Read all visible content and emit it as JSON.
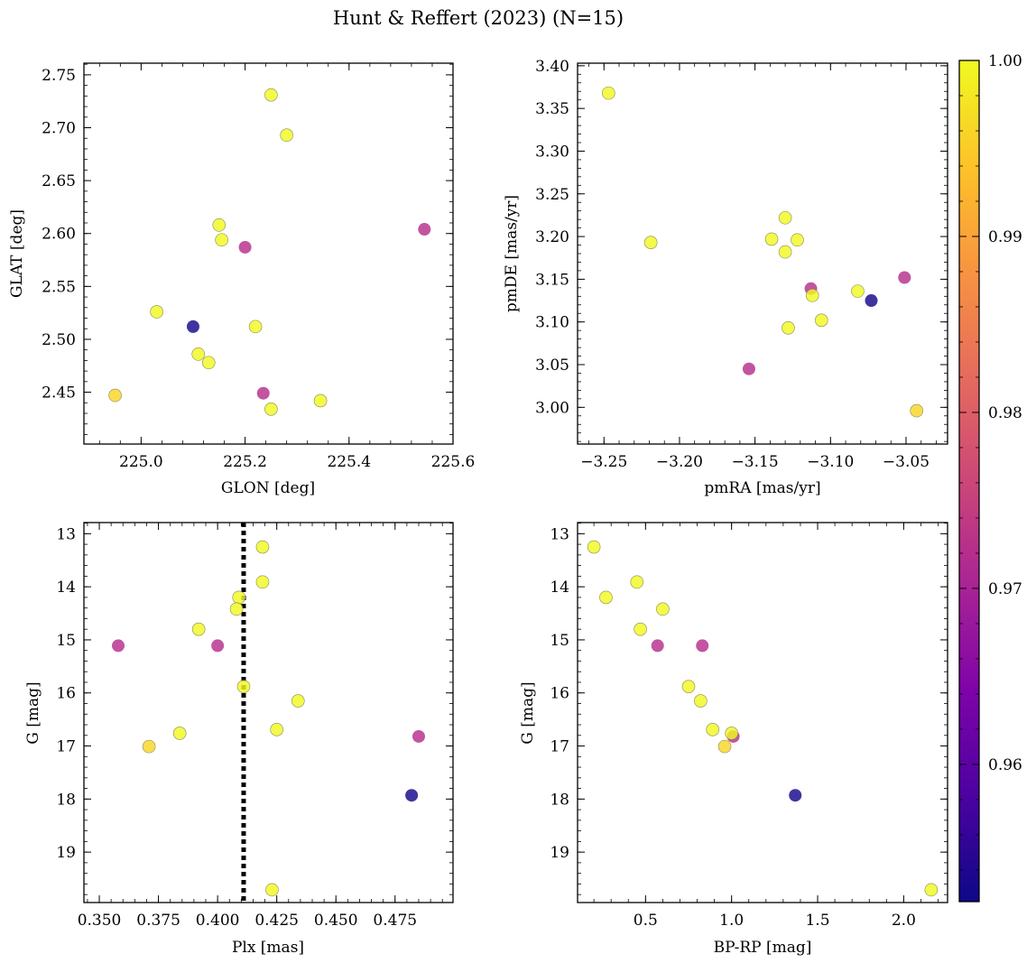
{
  "figure": {
    "title": "Hunt & Reffert (2023) (N=15)"
  },
  "colorbar": {
    "colormap": "plasma",
    "range": [
      0.9522,
      1.0
    ],
    "ticks": [
      0.96,
      0.97,
      0.98,
      0.99,
      1.0
    ],
    "tick_labels": [
      "0.96",
      "0.97",
      "0.98",
      "0.99",
      "1.00"
    ]
  },
  "chart_data": [
    {
      "type": "scatter",
      "xlabel": "GLON [deg]",
      "ylabel": "GLAT [deg]",
      "xlim": [
        224.89,
        225.6
      ],
      "ylim": [
        2.401,
        2.761
      ],
      "xticks": [
        225.0,
        225.2,
        225.4,
        225.6
      ],
      "xtick_labels": [
        "225.0",
        "225.2",
        "225.4",
        "225.6"
      ],
      "yticks": [
        2.45,
        2.5,
        2.55,
        2.6,
        2.65,
        2.7,
        2.75
      ],
      "ytick_labels": [
        "2.45",
        "2.50",
        "2.55",
        "2.60",
        "2.65",
        "2.70",
        "2.75"
      ],
      "points": [
        {
          "x": 225.25,
          "y": 2.731,
          "c": 1.0
        },
        {
          "x": 225.28,
          "y": 2.693,
          "c": 1.0
        },
        {
          "x": 225.15,
          "y": 2.608,
          "c": 1.0
        },
        {
          "x": 225.155,
          "y": 2.594,
          "c": 1.0
        },
        {
          "x": 225.2,
          "y": 2.587,
          "c": 0.972
        },
        {
          "x": 225.545,
          "y": 2.604,
          "c": 0.972
        },
        {
          "x": 225.03,
          "y": 2.526,
          "c": 1.0
        },
        {
          "x": 225.1,
          "y": 2.512,
          "c": 0.953
        },
        {
          "x": 225.22,
          "y": 2.512,
          "c": 1.0
        },
        {
          "x": 225.11,
          "y": 2.486,
          "c": 1.0
        },
        {
          "x": 225.13,
          "y": 2.478,
          "c": 1.0
        },
        {
          "x": 224.95,
          "y": 2.447,
          "c": 0.996
        },
        {
          "x": 225.235,
          "y": 2.449,
          "c": 0.972
        },
        {
          "x": 225.345,
          "y": 2.442,
          "c": 1.0
        },
        {
          "x": 225.25,
          "y": 2.434,
          "c": 1.0
        }
      ]
    },
    {
      "type": "scatter",
      "xlabel": "pmRA [mas/yr]",
      "ylabel": "pmDE [mas/yr]",
      "xlim": [
        -3.2675,
        -3.0225
      ],
      "ylim": [
        2.957,
        3.403
      ],
      "xticks": [
        -3.25,
        -3.2,
        -3.15,
        -3.1,
        -3.05
      ],
      "xtick_labels": [
        "−3.25",
        "−3.20",
        "−3.15",
        "−3.10",
        "−3.05"
      ],
      "yticks": [
        3.0,
        3.05,
        3.1,
        3.15,
        3.2,
        3.25,
        3.3,
        3.35,
        3.4
      ],
      "ytick_labels": [
        "3.00",
        "3.05",
        "3.10",
        "3.15",
        "3.20",
        "3.25",
        "3.30",
        "3.35",
        "3.40"
      ],
      "points": [
        {
          "x": -3.247,
          "y": 3.368,
          "c": 1.0
        },
        {
          "x": -3.219,
          "y": 3.193,
          "c": 1.0
        },
        {
          "x": -3.13,
          "y": 3.222,
          "c": 1.0
        },
        {
          "x": -3.139,
          "y": 3.197,
          "c": 1.0
        },
        {
          "x": -3.122,
          "y": 3.196,
          "c": 1.0
        },
        {
          "x": -3.13,
          "y": 3.182,
          "c": 1.0
        },
        {
          "x": -3.051,
          "y": 3.152,
          "c": 0.972
        },
        {
          "x": -3.113,
          "y": 3.139,
          "c": 0.972
        },
        {
          "x": -3.082,
          "y": 3.136,
          "c": 1.0
        },
        {
          "x": -3.112,
          "y": 3.131,
          "c": 1.0
        },
        {
          "x": -3.073,
          "y": 3.125,
          "c": 0.953
        },
        {
          "x": -3.106,
          "y": 3.102,
          "c": 1.0
        },
        {
          "x": -3.128,
          "y": 3.093,
          "c": 1.0
        },
        {
          "x": -3.154,
          "y": 3.045,
          "c": 0.972
        },
        {
          "x": -3.043,
          "y": 2.996,
          "c": 0.996
        }
      ]
    },
    {
      "type": "scatter",
      "xlabel": "Plx [mas]",
      "ylabel": "G [mag]",
      "xlim": [
        0.3435,
        0.4995
      ],
      "ylim": [
        19.95,
        12.79
      ],
      "y_inverted": true,
      "xticks": [
        0.35,
        0.375,
        0.4,
        0.425,
        0.45,
        0.475
      ],
      "xtick_labels": [
        "0.350",
        "0.375",
        "0.400",
        "0.425",
        "0.450",
        "0.475"
      ],
      "yticks": [
        13,
        14,
        15,
        16,
        17,
        18,
        19
      ],
      "ytick_labels": [
        "13",
        "14",
        "15",
        "16",
        "17",
        "18",
        "19"
      ],
      "vline": {
        "x": 0.411,
        "style": "dotted"
      },
      "points": [
        {
          "x": 0.419,
          "y": 13.25,
          "c": 1.0
        },
        {
          "x": 0.419,
          "y": 13.91,
          "c": 1.0
        },
        {
          "x": 0.409,
          "y": 14.2,
          "c": 1.0
        },
        {
          "x": 0.408,
          "y": 14.42,
          "c": 1.0
        },
        {
          "x": 0.392,
          "y": 14.8,
          "c": 1.0
        },
        {
          "x": 0.358,
          "y": 15.11,
          "c": 0.972
        },
        {
          "x": 0.4,
          "y": 15.11,
          "c": 0.972
        },
        {
          "x": 0.411,
          "y": 15.88,
          "c": 1.0
        },
        {
          "x": 0.434,
          "y": 16.15,
          "c": 1.0
        },
        {
          "x": 0.425,
          "y": 16.69,
          "c": 1.0
        },
        {
          "x": 0.384,
          "y": 16.76,
          "c": 1.0
        },
        {
          "x": 0.485,
          "y": 16.82,
          "c": 0.972
        },
        {
          "x": 0.371,
          "y": 17.01,
          "c": 0.996
        },
        {
          "x": 0.482,
          "y": 17.93,
          "c": 0.953
        },
        {
          "x": 0.423,
          "y": 19.71,
          "c": 1.0
        }
      ]
    },
    {
      "type": "scatter",
      "xlabel": "BP-RP [mag]",
      "ylabel": "G [mag]",
      "xlim": [
        0.105,
        2.255
      ],
      "ylim": [
        19.95,
        12.79
      ],
      "y_inverted": true,
      "xticks": [
        0.5,
        1.0,
        1.5,
        2.0
      ],
      "xtick_labels": [
        "0.5",
        "1.0",
        "1.5",
        "2.0"
      ],
      "yticks": [
        13,
        14,
        15,
        16,
        17,
        18,
        19
      ],
      "ytick_labels": [
        "13",
        "14",
        "15",
        "16",
        "17",
        "18",
        "19"
      ],
      "points": [
        {
          "x": 0.2,
          "y": 13.25,
          "c": 1.0
        },
        {
          "x": 0.45,
          "y": 13.91,
          "c": 1.0
        },
        {
          "x": 0.27,
          "y": 14.2,
          "c": 1.0
        },
        {
          "x": 0.6,
          "y": 14.42,
          "c": 1.0
        },
        {
          "x": 0.47,
          "y": 14.8,
          "c": 1.0
        },
        {
          "x": 0.57,
          "y": 15.11,
          "c": 0.972
        },
        {
          "x": 0.83,
          "y": 15.11,
          "c": 0.972
        },
        {
          "x": 0.75,
          "y": 15.88,
          "c": 1.0
        },
        {
          "x": 0.82,
          "y": 16.15,
          "c": 1.0
        },
        {
          "x": 0.89,
          "y": 16.69,
          "c": 1.0
        },
        {
          "x": 1.01,
          "y": 16.82,
          "c": 0.972
        },
        {
          "x": 1.0,
          "y": 16.76,
          "c": 1.0
        },
        {
          "x": 0.96,
          "y": 17.01,
          "c": 0.996
        },
        {
          "x": 1.37,
          "y": 17.93,
          "c": 0.953
        },
        {
          "x": 2.16,
          "y": 19.71,
          "c": 1.0
        }
      ]
    }
  ]
}
